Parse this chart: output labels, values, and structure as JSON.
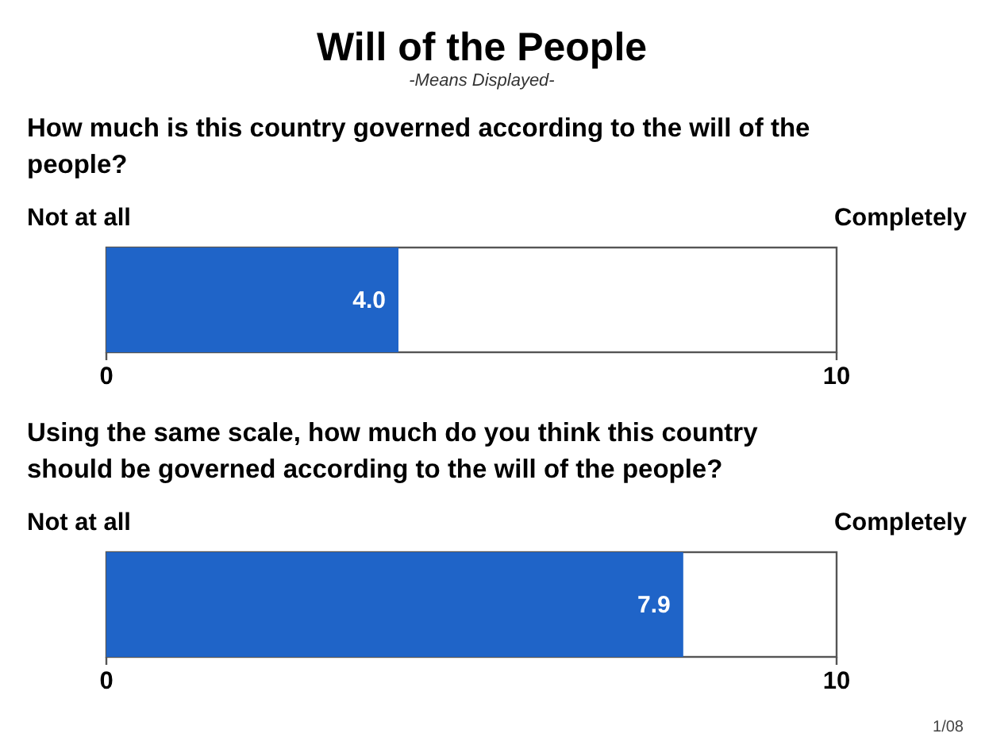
{
  "chart_data": {
    "type": "bar",
    "orientation": "horizontal",
    "title": "Will of the People",
    "subtitle": "-Means Displayed-",
    "categories": [
      "How much is this country governed according to the will of the people?",
      "Using the same scale, how much do you think this country should be governed according to the will of the people?"
    ],
    "values": [
      4.0,
      7.9
    ],
    "value_labels": [
      "4.0",
      "7.9"
    ],
    "color": "#1f64c8",
    "xlim": [
      0,
      10
    ],
    "xticks": [
      0,
      10
    ],
    "x2lim": [
      0,
      10
    ],
    "x2ticks": [
      0,
      10
    ],
    "annotations": [
      "Not at all",
      "Completely",
      "1/08"
    ]
  }
}
